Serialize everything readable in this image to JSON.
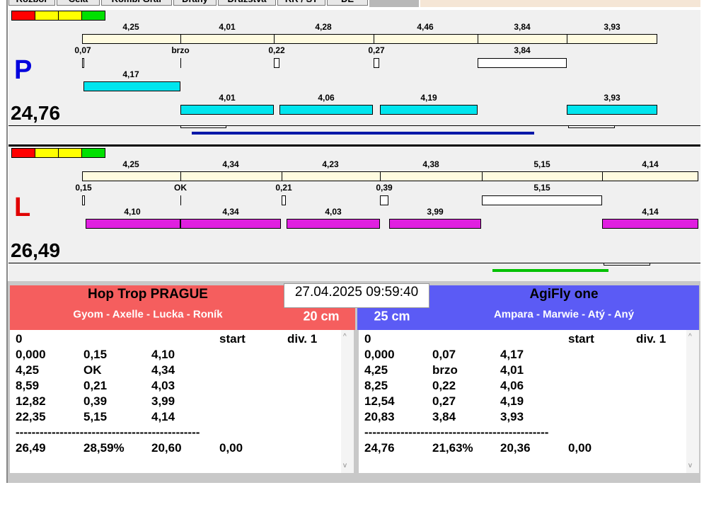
{
  "tabs": [
    "Rozbor",
    "Celá",
    "Kombi Graf",
    "Dráhy",
    "Družstva",
    "RR / ST",
    "DE"
  ],
  "lanes": [
    {
      "letter": "P",
      "total": "24,76",
      "segment_times": [
        "4,25",
        "4,01",
        "4,28",
        "4,46",
        "3,84",
        "3,93"
      ],
      "reaction_labels": [
        "0,07",
        "brzo",
        "0,22",
        "0,27",
        "3,84"
      ],
      "dog_times": [
        "4,17",
        "4,01",
        "4,06",
        "4,19",
        "3,93"
      ]
    },
    {
      "letter": "L",
      "total": "26,49",
      "segment_times": [
        "4,25",
        "4,34",
        "4,23",
        "4,38",
        "5,15",
        "4,14"
      ],
      "reaction_labels": [
        "0,15",
        "OK",
        "0,21",
        "0,39",
        "5,15"
      ],
      "dog_times": [
        "4,10",
        "4,34",
        "4,03",
        "3,99",
        "4,14"
      ]
    }
  ],
  "datetime": "27.04.2025 09:59:40",
  "teams": [
    {
      "name": "Hop Trop PRAGUE",
      "members": "Gyom - Axelle - Lucka - Roník",
      "height": "20 cm",
      "header": [
        "0",
        "start",
        "div. 1"
      ],
      "rows": [
        [
          "0,000",
          "0,15",
          "4,10"
        ],
        [
          "4,25",
          "OK",
          "4,34"
        ],
        [
          "8,59",
          "0,21",
          "4,03"
        ],
        [
          "12,82",
          "0,39",
          "3,99"
        ],
        [
          "22,35",
          "5,15",
          "4,14"
        ]
      ],
      "separator": "----------------------------------------------",
      "summary": [
        "26,49",
        "28,59%",
        "20,60",
        "0,00"
      ]
    },
    {
      "name": "AgiFly one",
      "members": "Ampara - Marwie - Atý - Aný",
      "height": "25 cm",
      "header": [
        "0",
        "start",
        "div. 1"
      ],
      "rows": [
        [
          "0,000",
          "0,07",
          "4,17"
        ],
        [
          "4,25",
          "brzo",
          "4,01"
        ],
        [
          "8,25",
          "0,22",
          "4,06"
        ],
        [
          "12,54",
          "0,27",
          "4,19"
        ],
        [
          "20,83",
          "3,84",
          "3,93"
        ]
      ],
      "separator": "----------------------------------------------",
      "summary": [
        "24,76",
        "21,63%",
        "20,36",
        "0,00"
      ]
    }
  ]
}
